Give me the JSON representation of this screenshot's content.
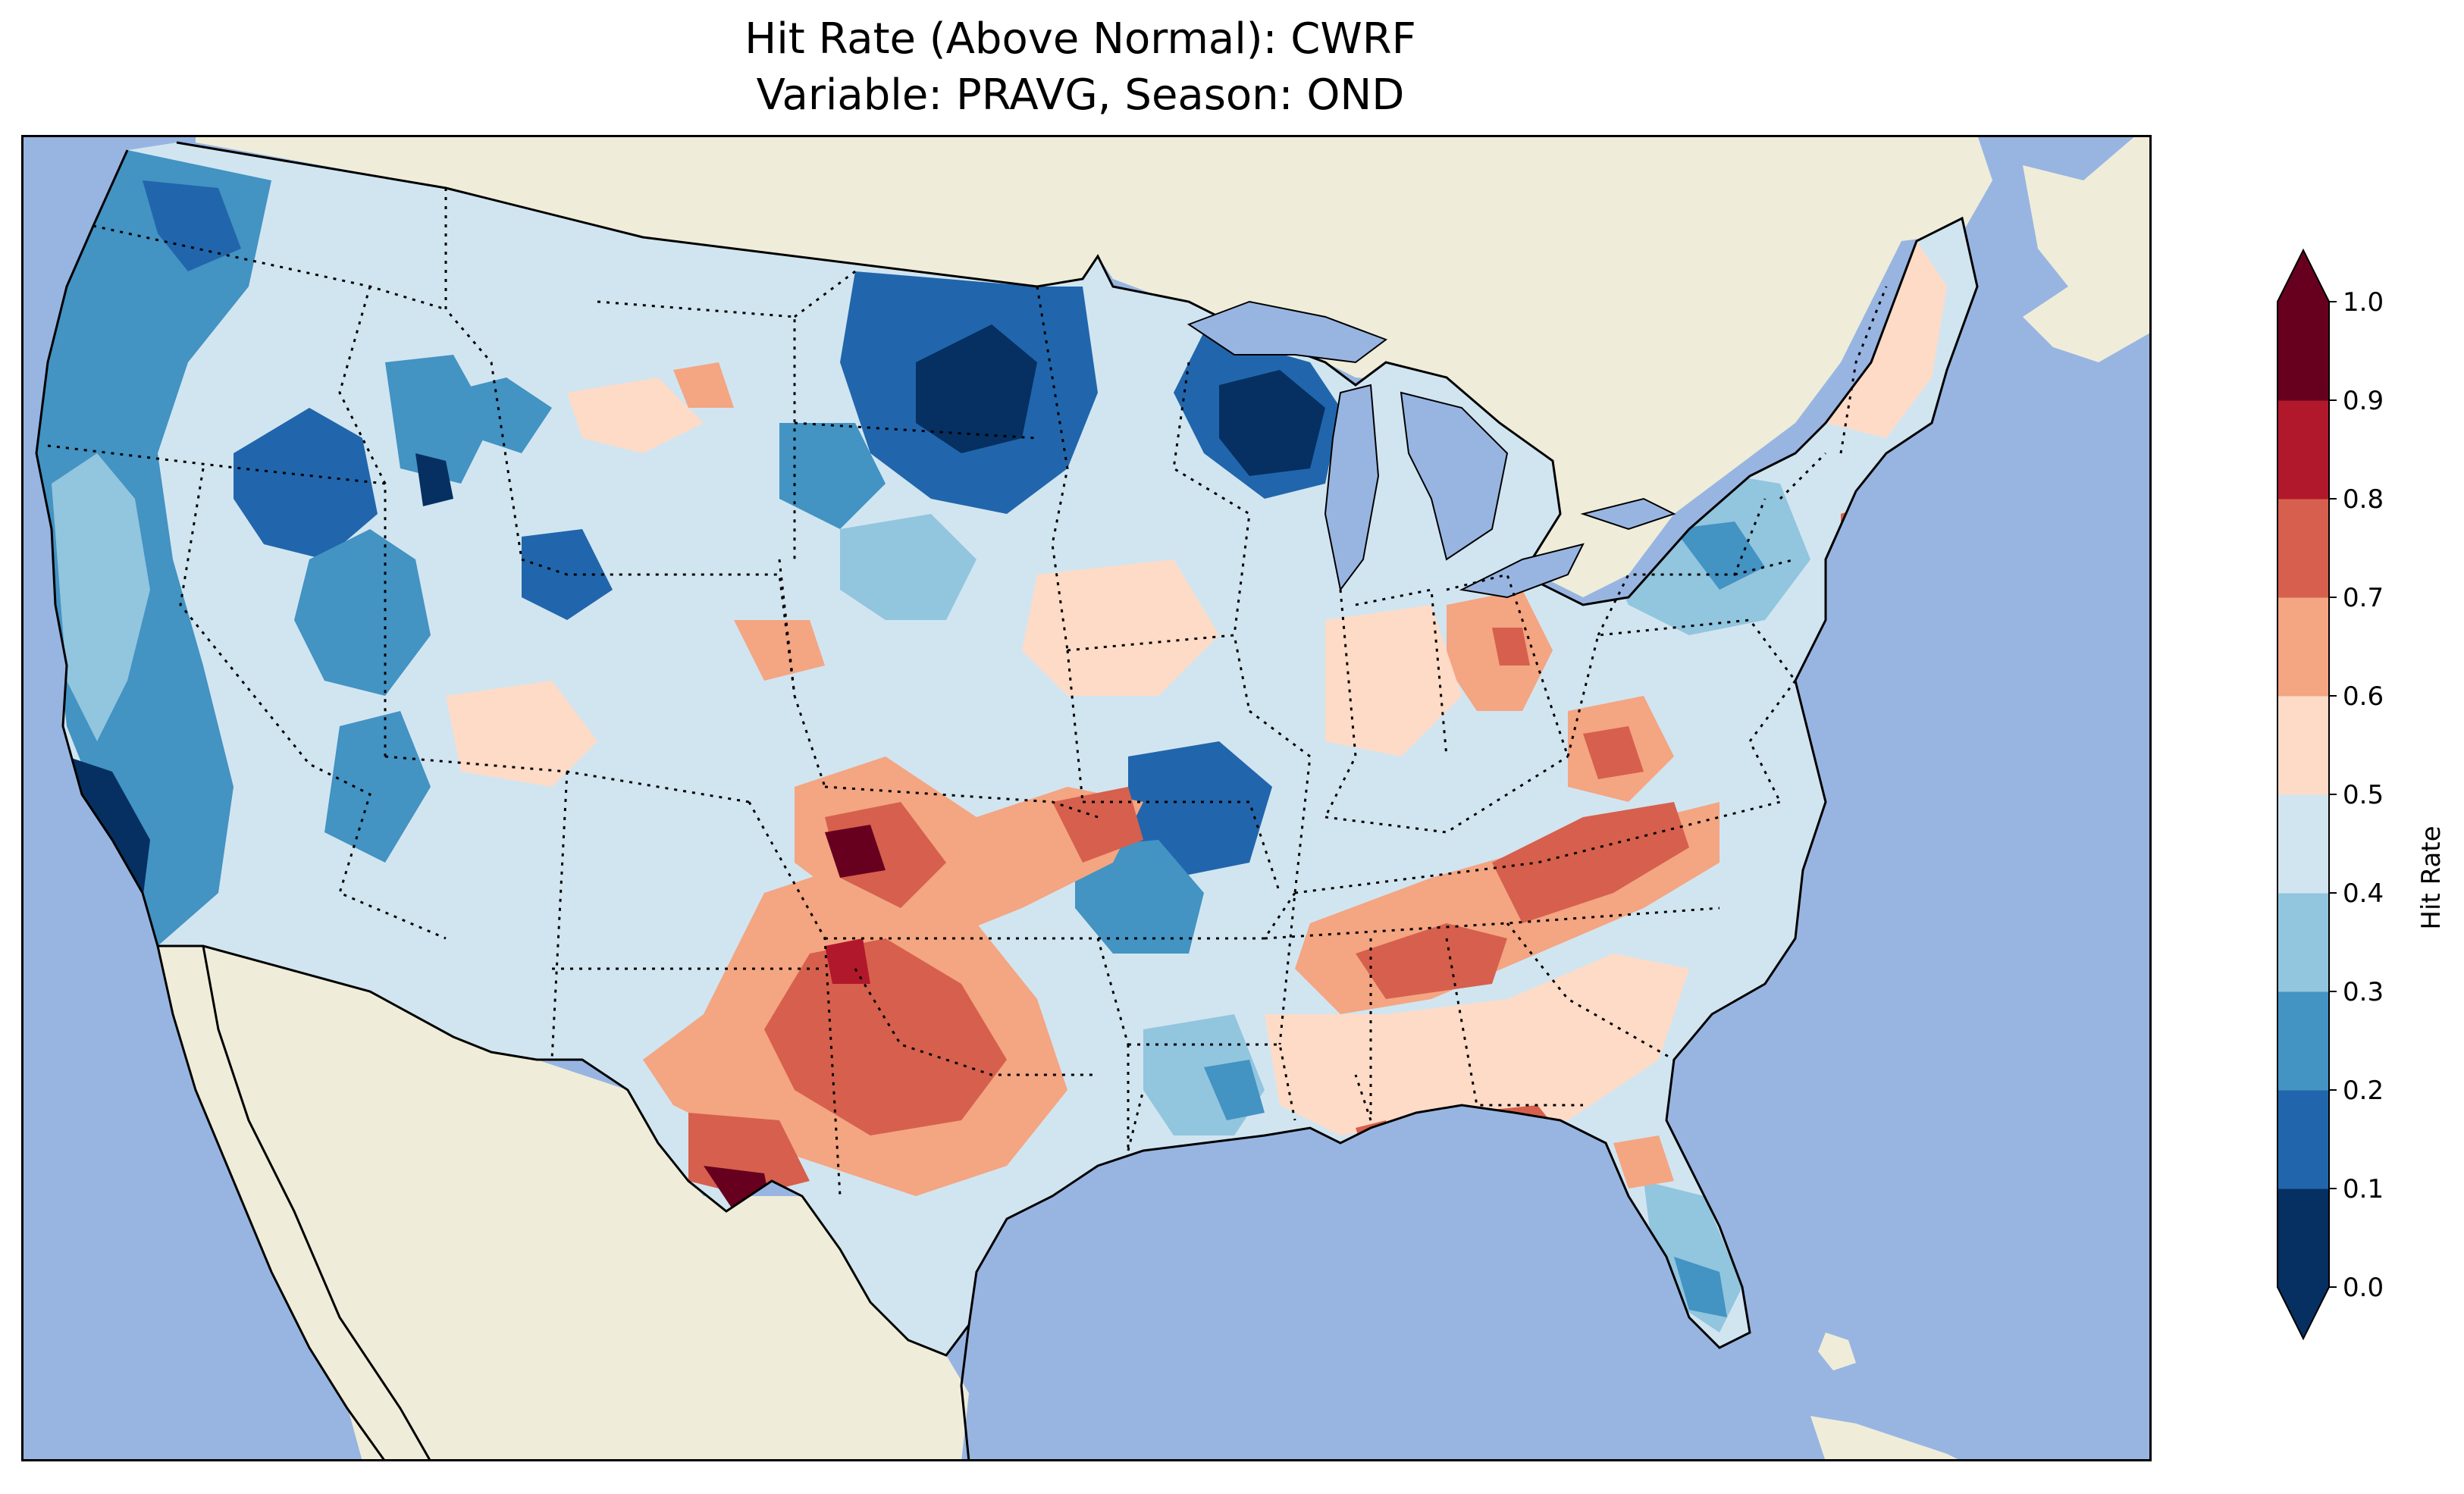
{
  "title_line1": "Hit Rate (Above Normal): CWRF",
  "title_line2": "Variable: PRAVG, Season: OND",
  "colorbar": {
    "label": "Hit Rate",
    "ticks": [
      "0.0",
      "0.1",
      "0.2",
      "0.3",
      "0.4",
      "0.5",
      "0.6",
      "0.7",
      "0.8",
      "0.9",
      "1.0"
    ],
    "colors": [
      "#053061",
      "#2166ac",
      "#4393c3",
      "#92c5de",
      "#d1e5f0",
      "#fddbc7",
      "#f4a582",
      "#d6604d",
      "#b2182b",
      "#67001f"
    ],
    "extend": "both"
  },
  "map": {
    "ocean_color": "#98b5e2",
    "land_color": "#efedd9",
    "projection": "Lambert Conformal",
    "region": "Contiguous United States"
  }
}
